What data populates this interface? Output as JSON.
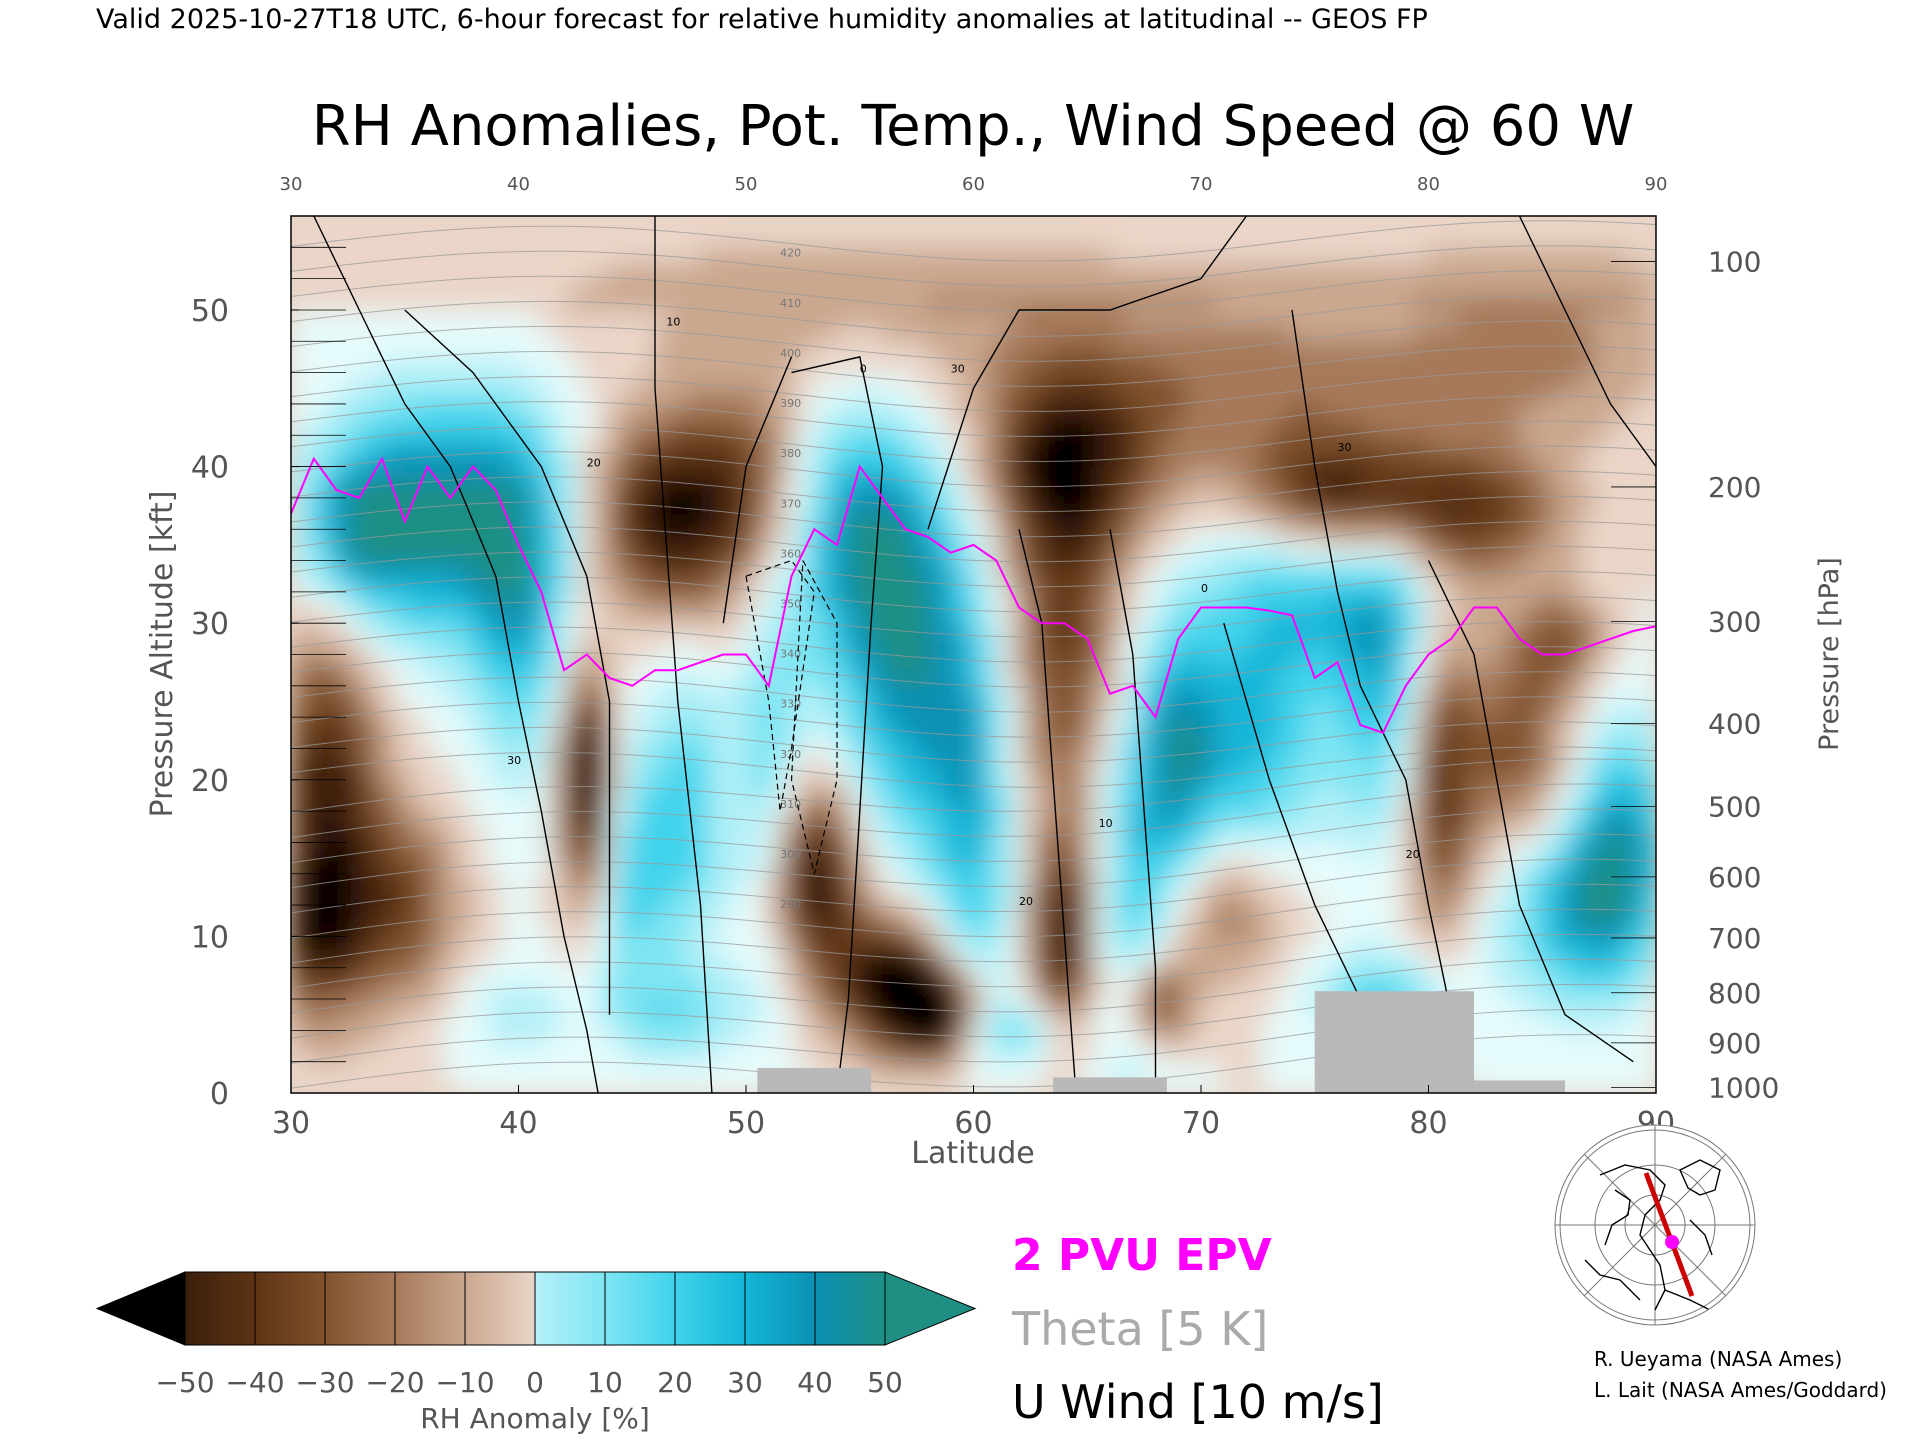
{
  "header": "Valid 2025-10-27T18 UTC, 6-hour forecast for relative humidity anomalies at latitudinal -- GEOS FP",
  "chart_data": {
    "type": "heatmap",
    "title": "RH Anomalies, Pot. Temp., Wind Speed @ 60 W",
    "xlabel": "Latitude",
    "ylabel": "Pressure Altitude [kft]",
    "y2label": "Pressure [hPa]",
    "xlim": [
      30,
      90
    ],
    "ylim": [
      0,
      56
    ],
    "x_ticks": [
      30,
      40,
      50,
      60,
      70,
      80,
      90
    ],
    "x_top_ticks": [
      30,
      40,
      50,
      60,
      70,
      80,
      90
    ],
    "y_ticks": [
      0,
      10,
      20,
      30,
      40,
      50
    ],
    "pressure_ticks": [
      {
        "hpa": "100",
        "kft": 53.1
      },
      {
        "hpa": "200",
        "kft": 38.7
      },
      {
        "hpa": "300",
        "kft": 30.1
      },
      {
        "hpa": "400",
        "kft": 23.6
      },
      {
        "hpa": "500",
        "kft": 18.3
      },
      {
        "hpa": "600",
        "kft": 13.8
      },
      {
        "hpa": "700",
        "kft": 9.9
      },
      {
        "hpa": "800",
        "kft": 6.4
      },
      {
        "hpa": "900",
        "kft": 3.2
      },
      {
        "hpa": "1000",
        "kft": 0.36
      }
    ],
    "colorbar": {
      "label": "RH Anomaly [%]",
      "ticks": [
        "−50",
        "−40",
        "−30",
        "−20",
        "−10",
        "0",
        "10",
        "20",
        "30",
        "40",
        "50"
      ],
      "colors": [
        "#000000",
        "#3b1f0d",
        "#5e3414",
        "#80522e",
        "#a6795a",
        "#caa78f",
        "#ead5c8",
        "#e6fbfb",
        "#b5f0f8",
        "#7fe5f3",
        "#3fd3ec",
        "#14b6d8",
        "#0b90b4",
        "#1f8f84"
      ]
    },
    "legend": {
      "epv": "2 PVU EPV",
      "theta": "Theta [5 K]",
      "wind": "U Wind [10 m/s]",
      "epv_color": "#ff00ff",
      "theta_color": "#aaaaaa"
    },
    "epv_2pvu_line": [
      [
        30,
        37
      ],
      [
        31,
        40.5
      ],
      [
        32,
        38.5
      ],
      [
        33,
        38
      ],
      [
        34,
        40.5
      ],
      [
        35,
        36.5
      ],
      [
        36,
        40
      ],
      [
        37,
        38
      ],
      [
        38,
        40
      ],
      [
        39,
        38.5
      ],
      [
        40,
        35
      ],
      [
        41,
        32
      ],
      [
        42,
        27
      ],
      [
        43,
        28
      ],
      [
        44,
        26.5
      ],
      [
        45,
        26
      ],
      [
        46,
        27
      ],
      [
        47,
        27
      ],
      [
        48,
        27.5
      ],
      [
        49,
        28
      ],
      [
        50,
        28
      ],
      [
        51,
        26
      ],
      [
        52,
        33
      ],
      [
        53,
        36
      ],
      [
        54,
        35
      ],
      [
        55,
        40
      ],
      [
        56,
        38
      ],
      [
        57,
        36
      ],
      [
        58,
        35.5
      ],
      [
        59,
        34.5
      ],
      [
        60,
        35
      ],
      [
        61,
        34
      ],
      [
        62,
        31
      ],
      [
        63,
        30
      ],
      [
        64,
        30
      ],
      [
        65,
        29
      ],
      [
        66,
        25.5
      ],
      [
        67,
        26
      ],
      [
        68,
        24
      ],
      [
        69,
        29
      ],
      [
        70,
        31
      ],
      [
        71,
        31
      ],
      [
        72,
        31
      ],
      [
        73,
        30.8
      ],
      [
        74,
        30.5
      ],
      [
        75,
        26.5
      ],
      [
        76,
        27.5
      ],
      [
        77,
        23.5
      ],
      [
        78,
        23
      ],
      [
        79,
        26
      ],
      [
        80,
        28
      ],
      [
        81,
        29
      ],
      [
        82,
        31
      ],
      [
        83,
        31
      ],
      [
        84,
        29
      ],
      [
        85,
        28
      ],
      [
        86,
        28
      ],
      [
        87,
        28.5
      ],
      [
        88,
        29
      ],
      [
        89,
        29.5
      ],
      [
        90,
        29.8
      ]
    ],
    "terrain": [
      {
        "x": [
          50.5,
          55.5
        ],
        "h": 1.6
      },
      {
        "x": [
          63.5,
          68.5
        ],
        "h": 1.0
      },
      {
        "x": [
          75,
          82
        ],
        "h": 6.5
      },
      {
        "x": [
          82,
          86
        ],
        "h": 0.8
      }
    ],
    "theta_labels": [
      "420",
      "410",
      "400",
      "390",
      "380",
      "370",
      "360",
      "350",
      "340",
      "330",
      "320",
      "310",
      "300",
      "290"
    ],
    "wind_labels": [
      "30",
      "20",
      "10",
      "0"
    ]
  },
  "inset_map": {
    "point_color": "#ff00ff",
    "track_color": "#cc0000"
  },
  "credits": {
    "line1": "R. Ueyama (NASA Ames)",
    "line2": "L. Lait (NASA Ames/Goddard)"
  }
}
